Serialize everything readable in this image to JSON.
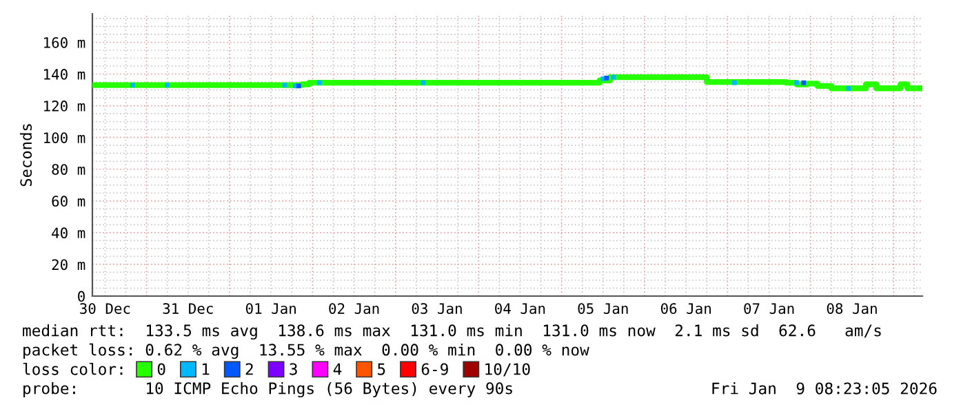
{
  "chart_data": {
    "type": "step",
    "ylabel": "Seconds",
    "legend_title": "loss color:",
    "legend": "bottom",
    "grid": true,
    "xlim": [
      "2025-12-30T08:20",
      "2026-01-09T08:20"
    ],
    "xticks": [
      {
        "value": "2025-12-30T12:00",
        "label": "30 Dec"
      },
      {
        "value": "2025-12-31T12:00",
        "label": "31 Dec"
      },
      {
        "value": "2026-01-01T12:00",
        "label": "01 Jan"
      },
      {
        "value": "2026-01-02T12:00",
        "label": "02 Jan"
      },
      {
        "value": "2026-01-03T12:00",
        "label": "03 Jan"
      },
      {
        "value": "2026-01-04T12:00",
        "label": "04 Jan"
      },
      {
        "value": "2026-01-05T12:00",
        "label": "05 Jan"
      },
      {
        "value": "2026-01-06T12:00",
        "label": "06 Jan"
      },
      {
        "value": "2026-01-07T12:00",
        "label": "07 Jan"
      },
      {
        "value": "2026-01-08T12:00",
        "label": "08 Jan"
      }
    ],
    "ylim": [
      0,
      178
    ],
    "yticks": [
      0,
      {
        "value": 20,
        "label": "20 m"
      },
      {
        "value": 40,
        "label": "40 m"
      },
      {
        "value": 60,
        "label": "60 m"
      },
      {
        "value": 80,
        "label": "80 m"
      },
      {
        "value": 100,
        "label": "100 m"
      },
      {
        "value": 120,
        "label": "120 m"
      },
      {
        "value": 140,
        "label": "140 m"
      },
      {
        "value": 160,
        "label": "160 m"
      }
    ],
    "series": [
      {
        "name": "0",
        "color": "#26ff00",
        "x": [
          "2025-12-30T08:20",
          "2026-01-01T21:00",
          "2026-01-01T23:00",
          "2026-01-05T08:00",
          "2026-01-05T11:00",
          "2026-01-05T14:00",
          "2026-01-06T18:00",
          "2026-01-07T17:00",
          "2026-01-07T20:00",
          "2026-01-07T23:00",
          "2026-01-08T02:00",
          "2026-01-08T06:00",
          "2026-01-08T16:00",
          "2026-01-08T19:00",
          "2026-01-09T02:00",
          "2026-01-09T04:00",
          "2026-01-09T07:40"
        ],
        "values": [
          133,
          133.5,
          134.5,
          134.5,
          136,
          138,
          135,
          134.5,
          133.5,
          134,
          132.5,
          131,
          133.5,
          131,
          133.5,
          131,
          131
        ]
      },
      {
        "name": "1",
        "type": "scatter",
        "color": "#00b8ff",
        "x": [
          "2025-12-30T20:00",
          "2025-12-31T06:00",
          "2026-01-01T16:00",
          "2026-01-01T19:00",
          "2026-01-02T02:00",
          "2026-01-03T08:00",
          "2026-01-05T12:00",
          "2026-01-05T15:00",
          "2026-01-07T02:00",
          "2026-01-07T20:00",
          "2026-01-08T11:00"
        ],
        "values": [
          133,
          133,
          133,
          132.5,
          134.5,
          134.5,
          137,
          138,
          134.5,
          134.5,
          131
        ]
      },
      {
        "name": "2",
        "type": "scatter",
        "color": "#0059ff",
        "x": [
          "2026-01-01T20:00",
          "2026-01-05T13:00",
          "2026-01-07T22:00"
        ],
        "values": [
          132.5,
          137.5,
          134.5
        ]
      },
      {
        "name": "3",
        "type": "scatter",
        "color": "#7e00ff"
      },
      {
        "name": "4",
        "type": "scatter",
        "color": "#ff00ff"
      },
      {
        "name": "5",
        "type": "scatter",
        "color": "#ff5500"
      },
      {
        "name": "6-9",
        "type": "scatter",
        "color": "#ff0000"
      },
      {
        "name": "10/10",
        "type": "scatter",
        "color": "#a10000"
      }
    ],
    "annotations": [
      "median rtt:  133.5 ms avg  138.6 ms max  131.0 ms min  131.0 ms now  2.1 ms sd  62.6   am/s",
      "packet loss: 0.62 % avg  13.55 % max  0.00 % min  0.00 % now",
      "probe:       10 ICMP Echo Pings (56 Bytes) every 90s",
      "Fri Jan  9 08:23:05 2026"
    ]
  }
}
